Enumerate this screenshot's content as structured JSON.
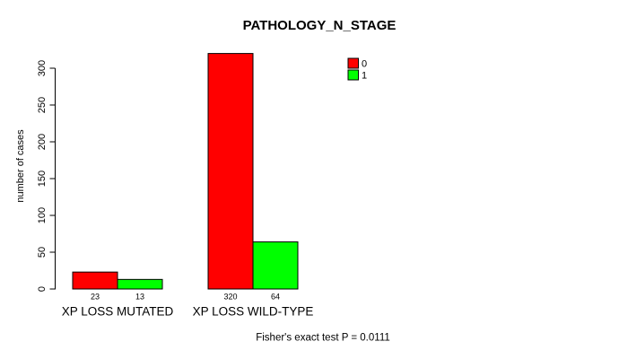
{
  "chart_data": {
    "type": "bar",
    "title": "PATHOLOGY_N_STAGE",
    "ylabel": "number of cases",
    "xlabel": "",
    "footer": "Fisher's exact test P = 0.0111",
    "categories": [
      "XP LOSS MUTATED",
      "XP LOSS WILD-TYPE"
    ],
    "series": [
      {
        "name": "0",
        "color": "#FF0000",
        "values": [
          23,
          320
        ]
      },
      {
        "name": "1",
        "color": "#00FF00",
        "values": [
          13,
          64
        ]
      }
    ],
    "bar_value_labels": [
      [
        "23",
        "13"
      ],
      [
        "320",
        "64"
      ]
    ],
    "ylim": [
      0,
      300
    ],
    "yticks": [
      0,
      50,
      100,
      150,
      200,
      250,
      300
    ],
    "grid": false,
    "legend_position": "top-right",
    "background": "#FFFFFF",
    "axis_color": "#000000",
    "bar_border_color": "#000000"
  }
}
